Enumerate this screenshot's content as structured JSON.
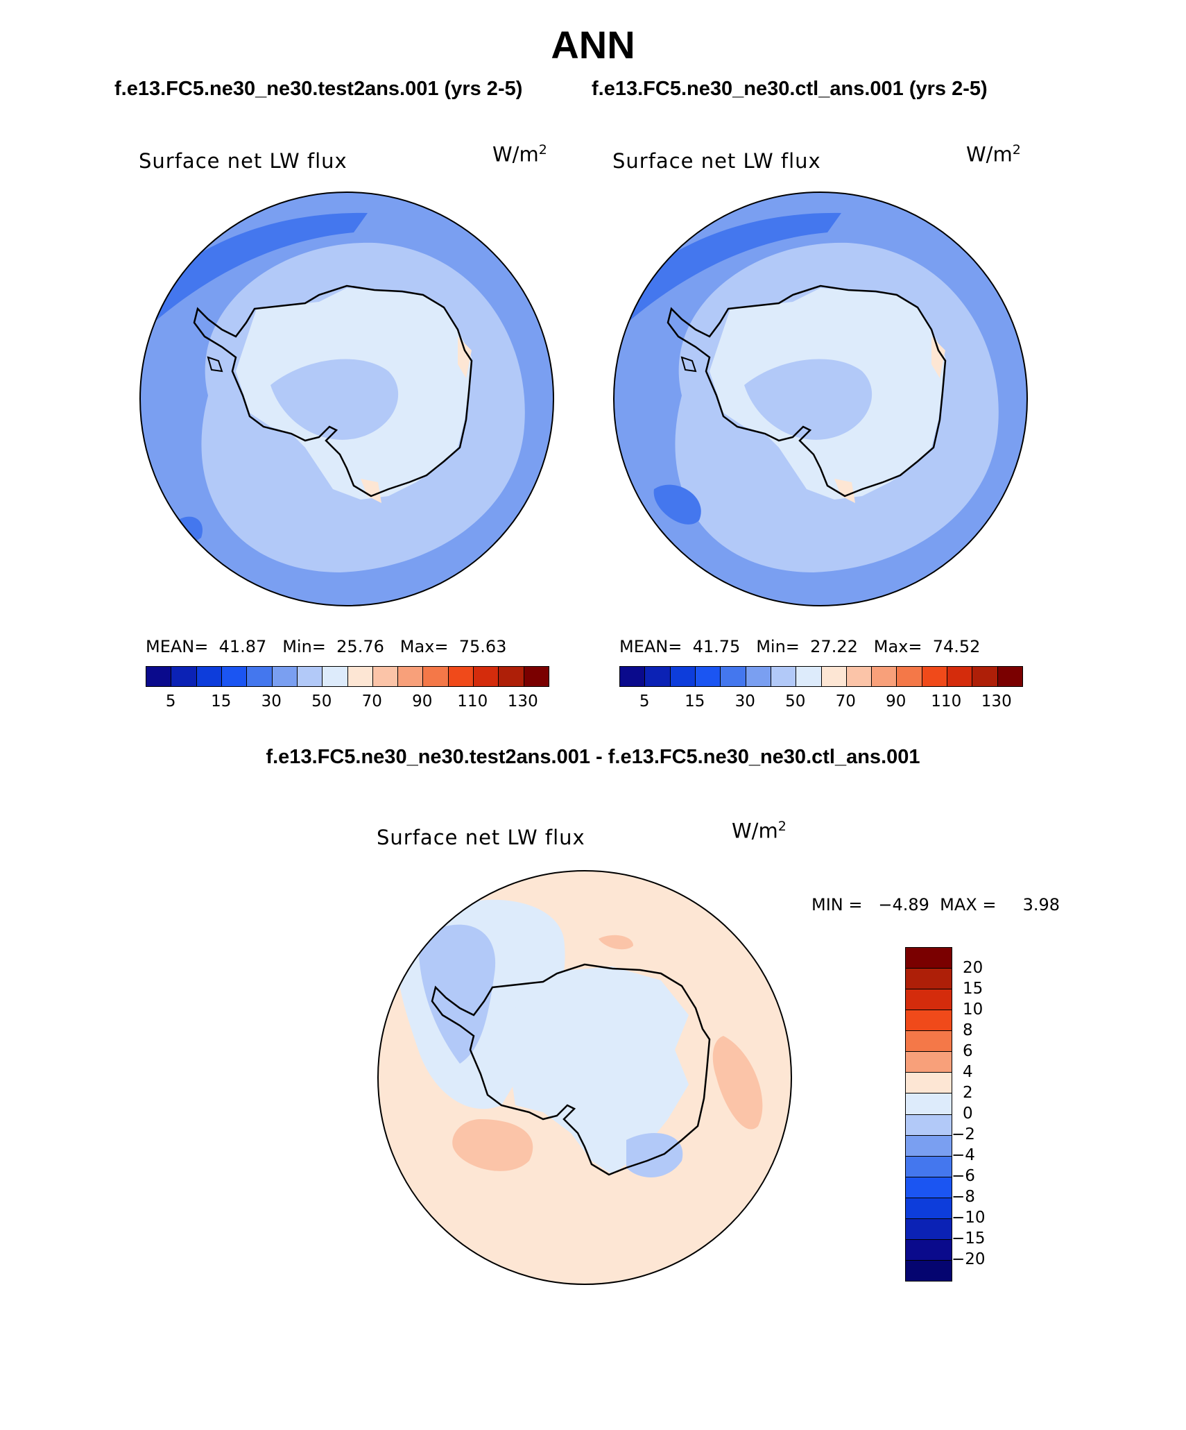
{
  "title": "ANN",
  "panels": [
    {
      "case_label": "f.e13.FC5.ne30_ne30.test2ans.001 (yrs 2-5)",
      "variable": "Surface net LW flux",
      "units_base": "W/m",
      "units_exp": "2",
      "stats_text": "MEAN=  41.87   Min=  25.76   Max=  75.63",
      "mean": 41.87,
      "min": 25.76,
      "max": 75.63
    },
    {
      "case_label": "f.e13.FC5.ne30_ne30.ctl_ans.001 (yrs 2-5)",
      "variable": "Surface net LW flux",
      "units_base": "W/m",
      "units_exp": "2",
      "stats_text": "MEAN=  41.75   Min=  27.22   Max=  74.52",
      "mean": 41.75,
      "min": 27.22,
      "max": 74.52
    }
  ],
  "diff": {
    "title": "f.e13.FC5.ne30_ne30.test2ans.001 - f.e13.FC5.ne30_ne30.ctl_ans.001",
    "variable": "Surface net LW flux",
    "units_base": "W/m",
    "units_exp": "2",
    "stats_text": "MIN =   −4.89  MAX =     3.98",
    "min": -4.89,
    "max": 3.98
  },
  "colorbar_main": {
    "colors": [
      "#0a0a8c",
      "#0b22b5",
      "#0d3ddb",
      "#1b55f2",
      "#4477ee",
      "#7a9ff1",
      "#b2c9f8",
      "#ddebfb",
      "#fde6d4",
      "#fbc4a8",
      "#f8a07a",
      "#f47848",
      "#f04a1a",
      "#d42c0c",
      "#ae1f08",
      "#7a0000"
    ],
    "labels": [
      "5",
      "15",
      "30",
      "50",
      "70",
      "90",
      "110",
      "130"
    ]
  },
  "colorbar_diff": {
    "colors": [
      "#7a0000",
      "#ae1f08",
      "#d42c0c",
      "#f04a1a",
      "#f47848",
      "#f8a07a",
      "#fde6d4",
      "#ddebfb",
      "#b2c9f8",
      "#7a9ff1",
      "#4477ee",
      "#1b55f2",
      "#0d3ddb",
      "#0b22b5",
      "#0a0a8c",
      "#050570"
    ],
    "labels": [
      "20",
      "15",
      "10",
      "8",
      "6",
      "4",
      "2",
      "0",
      "−2",
      "−4",
      "−6",
      "−8",
      "−10",
      "−15",
      "−20"
    ]
  },
  "map_colors": {
    "ocean_outer": "#7a9ff1",
    "ocean_mid": "#b2c9f8",
    "ice_sheet": "#ddebfb",
    "dark_blue": "#4477ee",
    "warm": "#fde6d4",
    "diff_base": "#fde6d4",
    "diff_neg1": "#ddebfb",
    "diff_neg2": "#b2c9f8",
    "diff_pos": "#fbc4a8"
  }
}
